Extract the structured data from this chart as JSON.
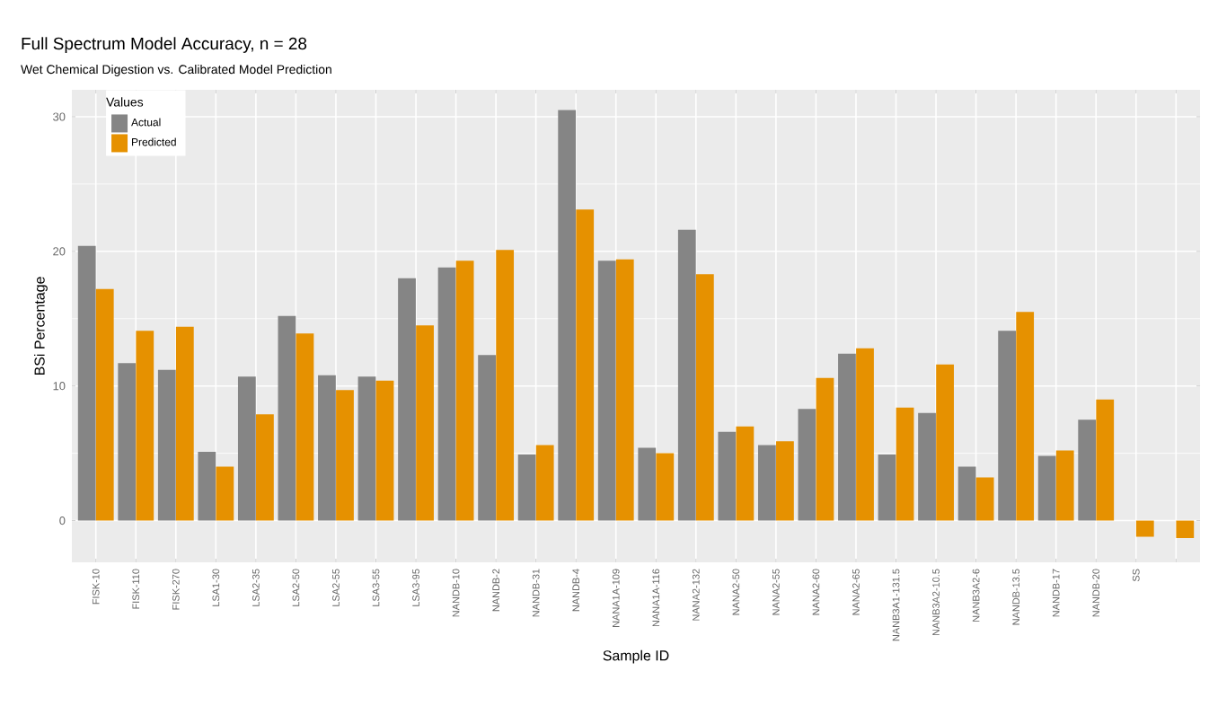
{
  "chart_data": {
    "type": "bar",
    "title": "Full Spectrum Model Accuracy, n = 28",
    "subtitle": "Wet Chemical Digestion vs. Calibrated Model Prediction",
    "xlabel": "Sample ID",
    "ylabel": "BSi Percentage",
    "legend_title": "Values",
    "categories": [
      "FISK-10",
      "FISK-110",
      "FISK-270",
      "LSA1-30",
      "LSA2-35",
      "LSA2-50",
      "LSA2-55",
      "LSA3-55",
      "LSA3-95",
      "NANDB-10",
      "NANDB-2",
      "NANDB-31",
      "NANDB-4",
      "NANA1A-109",
      "NANA1A-116",
      "NANA2-132",
      "NANA2-50",
      "NANA2-55",
      "NANA2-60",
      "NANA2-65",
      "NANB3A1-131.5",
      "NANB3A2-10.5",
      "NANB3A2-6",
      "NANDB-13.5",
      "NANDB-17",
      "NANDB-20",
      "SS",
      null
    ],
    "series": [
      {
        "name": "Actual",
        "color": "#858585",
        "values": [
          20.4,
          11.7,
          11.2,
          5.1,
          10.7,
          15.2,
          10.8,
          10.7,
          18.0,
          18.8,
          12.3,
          4.9,
          30.5,
          19.3,
          5.4,
          21.6,
          6.6,
          5.6,
          8.3,
          12.4,
          4.9,
          8.0,
          4.0,
          14.1,
          4.8,
          7.5,
          null,
          null
        ]
      },
      {
        "name": "Predicted",
        "color": "#e69100",
        "values": [
          17.2,
          14.1,
          14.4,
          4.0,
          7.9,
          13.9,
          9.7,
          10.4,
          14.5,
          19.3,
          20.1,
          5.6,
          23.1,
          19.4,
          5.0,
          18.3,
          7.0,
          5.9,
          10.6,
          12.8,
          8.4,
          11.6,
          3.2,
          15.5,
          5.2,
          9.0,
          -1.2,
          -1.3
        ]
      }
    ],
    "ylim": [
      -3.1,
      32
    ],
    "yticks": [
      0,
      10,
      20,
      30
    ],
    "grid": true,
    "legend": "top left"
  }
}
